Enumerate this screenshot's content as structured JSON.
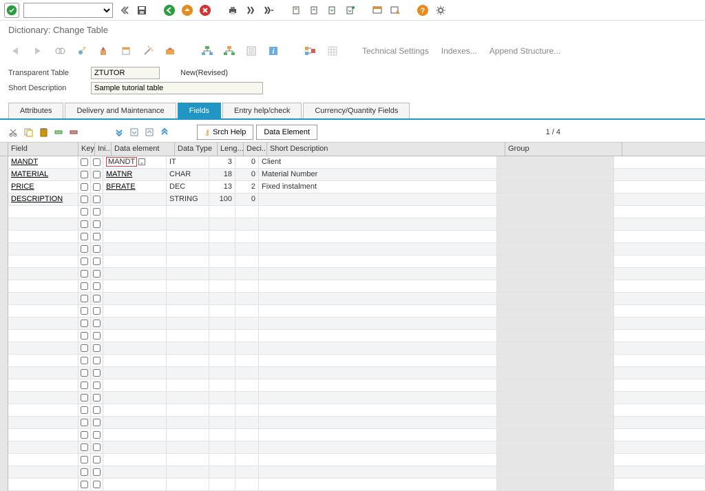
{
  "title_bar": "Dictionary: Change Table",
  "toolbar2_buttons": {
    "tech": "Technical Settings",
    "indexes": "Indexes...",
    "append": "Append Structure..."
  },
  "form": {
    "label_table": "Transparent Table",
    "table_name": "ZTUTOR",
    "status": "New(Revised)",
    "label_short": "Short Description",
    "short_desc": "Sample tutorial table"
  },
  "tabs": {
    "attrs": "Attributes",
    "delivery": "Delivery and Maintenance",
    "fields": "Fields",
    "entry": "Entry help/check",
    "currency": "Currency/Quantity Fields"
  },
  "subbar": {
    "srch": "Srch Help",
    "data_elem": "Data Element",
    "counter": "1 / 4"
  },
  "grid": {
    "headers": {
      "field": "Field",
      "key": "Key",
      "ini": "Ini...",
      "elem": "Data element",
      "type": "Data Type",
      "len": "Leng...",
      "dec": "Deci...",
      "desc": "Short Description",
      "group": "Group"
    },
    "rows": [
      {
        "field": "MANDT",
        "elem": "MANDT",
        "elem_active": true,
        "type": "IT",
        "len": "3",
        "dec": "0",
        "desc": "Client"
      },
      {
        "field": "MATERIAL",
        "elem": "MATNR",
        "type": "CHAR",
        "len": "18",
        "dec": "0",
        "desc": "Material Number"
      },
      {
        "field": "PRICE",
        "elem": "BFRATE",
        "type": "DEC",
        "len": "13",
        "dec": "2",
        "desc": "Fixed instalment"
      },
      {
        "field": "DESCRIPTION",
        "elem": "",
        "type": "STRING",
        "len": "100",
        "dec": "0",
        "desc": ""
      }
    ],
    "empty_rows": 23
  },
  "colors": {
    "accent": "#2196c4",
    "green": "#2a9d3f",
    "orange": "#e88b1c",
    "red": "#d0342c"
  }
}
